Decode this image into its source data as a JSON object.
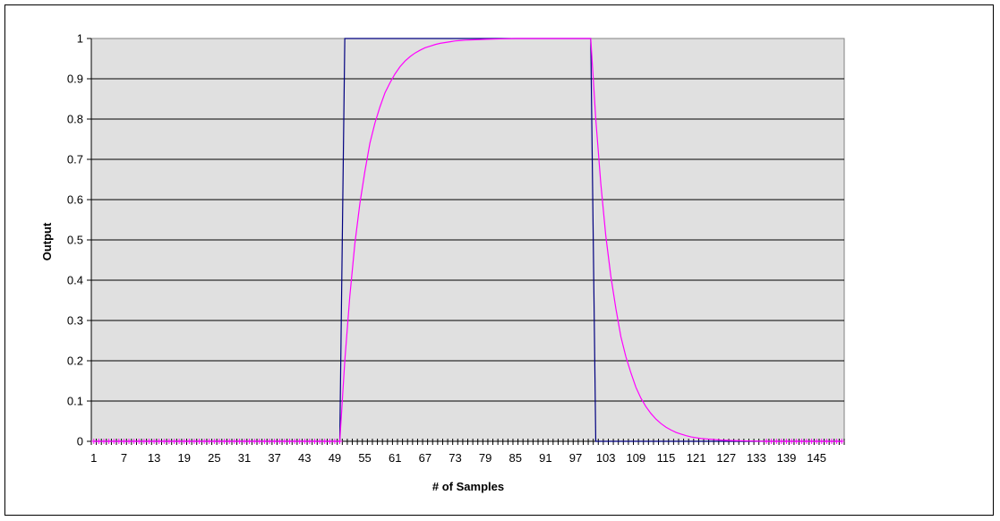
{
  "chart_data": {
    "type": "line",
    "title": "",
    "xlabel": "# of  Samples",
    "ylabel": "Output",
    "x_range": [
      1,
      150
    ],
    "ylim": [
      0,
      1
    ],
    "y_ticks": [
      "0",
      "0.1",
      "0.2",
      "0.3",
      "0.4",
      "0.5",
      "0.6",
      "0.7",
      "0.8",
      "0.9",
      "1"
    ],
    "x_tick_labels": [
      "1",
      "7",
      "13",
      "19",
      "25",
      "31",
      "37",
      "43",
      "49",
      "55",
      "61",
      "67",
      "73",
      "79",
      "85",
      "91",
      "97",
      "103",
      "109",
      "115",
      "121",
      "127",
      "133",
      "139",
      "145"
    ],
    "grid": "horizontal",
    "legend": "none",
    "plot_background": "#e0e0e0",
    "series": [
      {
        "color": "#000080",
        "marker": "none",
        "points": [
          [
            1,
            0
          ],
          [
            50,
            0
          ],
          [
            51,
            1
          ],
          [
            100,
            1
          ],
          [
            101,
            0
          ],
          [
            150,
            0
          ]
        ]
      },
      {
        "color": "#ff00ff",
        "marker": "plus",
        "points": [
          [
            1,
            0
          ],
          [
            50,
            0
          ],
          [
            51,
            0.2
          ],
          [
            52,
            0.36
          ],
          [
            53,
            0.49
          ],
          [
            54,
            0.59
          ],
          [
            55,
            0.67
          ],
          [
            56,
            0.74
          ],
          [
            57,
            0.79
          ],
          [
            58,
            0.83
          ],
          [
            59,
            0.865
          ],
          [
            60,
            0.89
          ],
          [
            61,
            0.912
          ],
          [
            62,
            0.93
          ],
          [
            63,
            0.944
          ],
          [
            64,
            0.955
          ],
          [
            65,
            0.964
          ],
          [
            66,
            0.971
          ],
          [
            67,
            0.977
          ],
          [
            68,
            0.981
          ],
          [
            69,
            0.985
          ],
          [
            70,
            0.988
          ],
          [
            71,
            0.99
          ],
          [
            72,
            0.992
          ],
          [
            73,
            0.994
          ],
          [
            74,
            0.995
          ],
          [
            75,
            0.996
          ],
          [
            77,
            0.997
          ],
          [
            79,
            0.998
          ],
          [
            82,
            0.999
          ],
          [
            85,
            1
          ],
          [
            100,
            1
          ],
          [
            101,
            0.8
          ],
          [
            102,
            0.64
          ],
          [
            103,
            0.51
          ],
          [
            104,
            0.41
          ],
          [
            105,
            0.33
          ],
          [
            106,
            0.26
          ],
          [
            107,
            0.21
          ],
          [
            108,
            0.17
          ],
          [
            109,
            0.134
          ],
          [
            110,
            0.107
          ],
          [
            111,
            0.086
          ],
          [
            112,
            0.069
          ],
          [
            113,
            0.055
          ],
          [
            114,
            0.044
          ],
          [
            115,
            0.035
          ],
          [
            116,
            0.028
          ],
          [
            117,
            0.022
          ],
          [
            118,
            0.018
          ],
          [
            119,
            0.014
          ],
          [
            120,
            0.011
          ],
          [
            121,
            0.009
          ],
          [
            122,
            0.007
          ],
          [
            123,
            0.006
          ],
          [
            124,
            0.005
          ],
          [
            125,
            0.004
          ],
          [
            126,
            0.003
          ],
          [
            128,
            0.002
          ],
          [
            131,
            0.001
          ],
          [
            135,
            0
          ],
          [
            150,
            0
          ]
        ]
      }
    ]
  }
}
